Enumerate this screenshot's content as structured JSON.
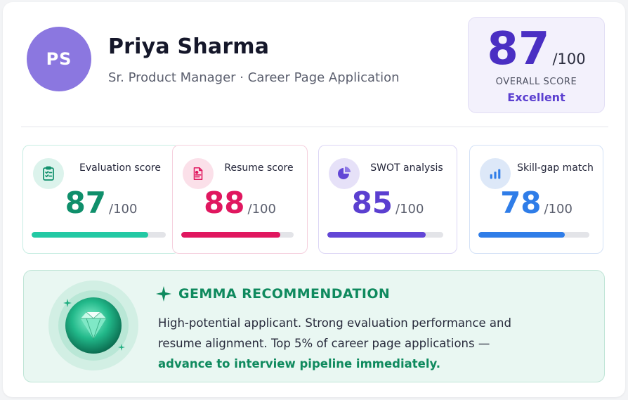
{
  "header": {
    "avatar_initials": "PS",
    "name": "Priya Sharma",
    "subtitle": "Sr. Product Manager · Career Page Application"
  },
  "overall": {
    "score": "87",
    "out_of": "/100",
    "label": "OVERALL SCORE",
    "rating": "Excellent",
    "progress": 0.87
  },
  "metrics": [
    {
      "title": "Evaluation score",
      "value": "87",
      "out_of": "/100",
      "progress": 0.87,
      "icon": "clipboard-check-icon",
      "color": "#0f8f6b",
      "bar_color": "#22c9a4"
    },
    {
      "title": "Resume score",
      "value": "88",
      "out_of": "/100",
      "progress": 0.88,
      "icon": "resume-document-icon",
      "color": "#e0175f",
      "bar_color": "#e0175f"
    },
    {
      "title": "SWOT analysis",
      "value": "85",
      "out_of": "/100",
      "progress": 0.85,
      "icon": "pie-chart-icon",
      "color": "#5b3fd0",
      "bar_color": "#6246d6"
    },
    {
      "title": "Skill-gap match",
      "value": "78",
      "out_of": "/100",
      "progress": 0.78,
      "icon": "bar-chart-icon",
      "color": "#2f7de8",
      "bar_color": "#2f7de8"
    }
  ],
  "recommendation": {
    "heading": "GEMMA RECOMMENDATION",
    "text_line1": "High-potential applicant. Strong evaluation performance and",
    "text_line2": "resume alignment. Top 5% of career page applications —",
    "cta": "advance to interview pipeline immediately.",
    "icon": "gem-icon",
    "accent": "#0f8a5e"
  }
}
